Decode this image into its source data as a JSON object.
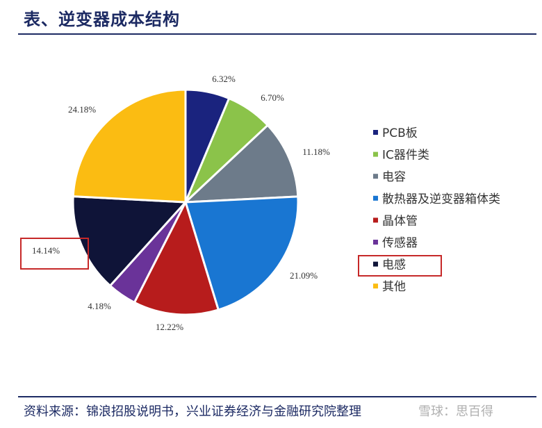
{
  "header": {
    "title": "表、逆变器成本结构"
  },
  "footer": {
    "source": "资料来源：锦浪招股说明书，兴业证券经济与金融研究院整理",
    "watermark": "雪球：思百得"
  },
  "chart_data": {
    "type": "pie",
    "title": "",
    "categories": [
      "PCB板",
      "IC器件类",
      "电容",
      "散热器及逆变器箱体类",
      "晶体管",
      "传感器",
      "电感",
      "其他"
    ],
    "values": [
      6.32,
      6.7,
      11.18,
      21.09,
      12.22,
      4.18,
      14.14,
      24.18
    ],
    "labels": [
      "6.32%",
      "6.70%",
      "11.18%",
      "21.09%",
      "12.22%",
      "4.18%",
      "14.14%",
      "24.18%"
    ],
    "colors": [
      "#1a237e",
      "#8bc34a",
      "#6d7b8a",
      "#1976d2",
      "#b71c1c",
      "#6a3399",
      "#0f1438",
      "#fbbc12"
    ],
    "start_angle": "12 o'clock, clockwise",
    "legend_position": "right",
    "highlighted": [
      "电感",
      "14.14%"
    ]
  }
}
